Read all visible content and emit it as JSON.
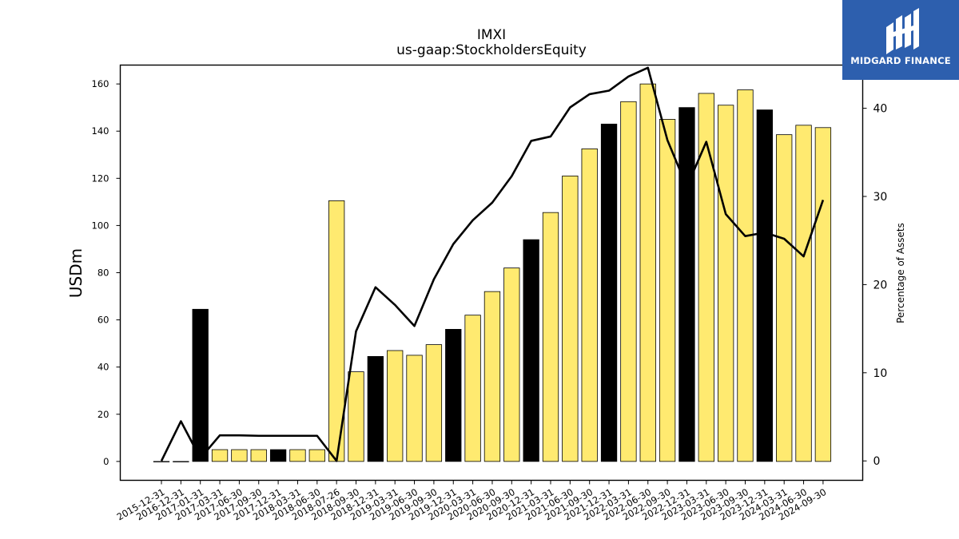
{
  "brand": {
    "name": "MIDGARD FINANCE",
    "bg_color": "#2d5fae"
  },
  "chart_data": {
    "type": "bar",
    "title": "IMXI",
    "subtitle": "us-gaap:StockholdersEquity",
    "ylabel": "USDm",
    "y2label": "Percentage of Assets",
    "ylim": [
      -8,
      168
    ],
    "y2lim": [
      -2.2,
      44.9
    ],
    "yticks": [
      0,
      20,
      40,
      60,
      80,
      100,
      120,
      140,
      160
    ],
    "y2ticks": [
      0,
      10,
      20,
      30,
      40
    ],
    "categories": [
      "2015-12-31",
      "2016-12-31",
      "2017-01-31",
      "2017-03-31",
      "2017-06-30",
      "2017-09-30",
      "2017-12-31",
      "2018-03-31",
      "2018-06-30",
      "2018-07-26",
      "2018-09-30",
      "2018-12-31",
      "2019-03-31",
      "2019-06-30",
      "2019-09-30",
      "2019-12-31",
      "2020-03-31",
      "2020-06-30",
      "2020-09-30",
      "2020-12-31",
      "2021-03-31",
      "2021-06-30",
      "2021-09-30",
      "2021-12-31",
      "2022-03-31",
      "2022-06-30",
      "2022-09-30",
      "2022-12-31",
      "2023-03-31",
      "2023-06-30",
      "2023-09-30",
      "2023-12-31",
      "2024-03-31",
      "2024-06-30",
      "2024-09-30"
    ],
    "series": [
      {
        "type": "bar",
        "values": [
          0,
          0,
          64.5,
          5,
          5,
          5,
          5,
          5,
          5,
          110.5,
          38,
          44.5,
          47,
          45,
          49.5,
          56,
          62,
          72,
          82,
          94,
          105.5,
          121,
          132.5,
          143,
          152.5,
          160,
          145,
          150,
          156,
          151,
          157.5,
          149,
          138.5,
          142.5,
          141.5
        ],
        "highlight": [
          false,
          false,
          true,
          false,
          false,
          false,
          true,
          false,
          false,
          false,
          false,
          true,
          false,
          false,
          false,
          true,
          false,
          false,
          false,
          true,
          false,
          false,
          false,
          true,
          false,
          false,
          false,
          true,
          false,
          false,
          false,
          true,
          false,
          false,
          false
        ]
      },
      {
        "type": "line",
        "axis": "right",
        "values": [
          0,
          4.5,
          0.3,
          2.9,
          2.9,
          2.85,
          2.85,
          2.85,
          2.85,
          0,
          14.7,
          19.7,
          17.7,
          15.3,
          20.6,
          24.6,
          27.3,
          29.3,
          32.3,
          36.3,
          36.8,
          40.1,
          41.6,
          42.0,
          43.6,
          44.6,
          36.4,
          31.1,
          36.2,
          28.0,
          25.5,
          25.9,
          25.2,
          23.2,
          29.6
        ]
      }
    ],
    "colors": {
      "bar_fill": "#ffea70",
      "bar_highlight": "#000000",
      "bar_edge": "#000000",
      "line": "#000000"
    },
    "grid": false,
    "legend": "none"
  }
}
